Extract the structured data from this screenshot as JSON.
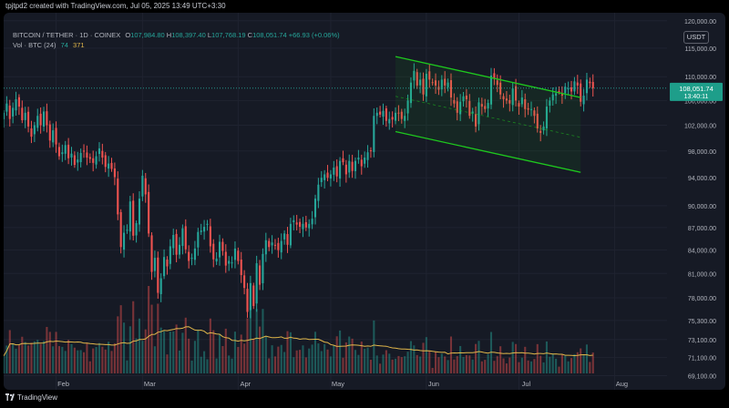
{
  "header": {
    "author_line": "tpjtpd2 created with TradingView.com, Jul 05, 2025 13:49 UTC+3:30"
  },
  "legend": {
    "symbol": "BITCOIN / TETHER · 1D · COINEX",
    "o_label": "O",
    "o_value": "107,984.80",
    "h_label": "H",
    "h_value": "108,397.40",
    "l_label": "L",
    "l_value": "107,768.19",
    "c_label": "C",
    "c_value": "108,051.74",
    "change": "+66.93 (+0.06%)",
    "vol_label": "Vol · BTC (24)",
    "vol_value1": "74",
    "vol_value2": "371"
  },
  "ticker_button": "USDT",
  "footer": {
    "brand": "TradingView"
  },
  "colors": {
    "background": "#161a25",
    "up": "#26a69a",
    "down": "#ef5350",
    "channel": "#1ec81e",
    "volume_ma": "#e0b64a",
    "price_tag": "#1e9e8a"
  },
  "chart_data": {
    "type": "candlestick",
    "symbol": "BITCOIN / TETHER",
    "interval": "1D",
    "exchange": "COINEX",
    "x_tick_labels": [
      "Feb",
      "Mar",
      "Apr",
      "May",
      "Jun",
      "Jul",
      "Aug"
    ],
    "x_ticks_dates": [
      "2025-02-01",
      "2025-03-01",
      "2025-04-01",
      "2025-05-01",
      "2025-06-01",
      "2025-07-01",
      "2025-08-01"
    ],
    "x_range": [
      "2025-01-15",
      "2025-08-18"
    ],
    "y_scale": "log",
    "y_ticks": [
      120000,
      115000,
      110000,
      106000,
      102000,
      98000,
      94000,
      90000,
      87000,
      84000,
      81000,
      78000,
      75300,
      73100,
      71100,
      69100
    ],
    "y_tick_labels": [
      "120,000.00",
      "115,000.00",
      "110,000.00",
      "106,000.00",
      "102,000.00",
      "98,000.00",
      "94,000.00",
      "90,000.00",
      "87,000.00",
      "84,000.00",
      "81,000.00",
      "78,000.00",
      "75,300.00",
      "73,100.00",
      "71,100.00",
      "69,100.00"
    ],
    "y_range": [
      67600,
      121500
    ],
    "last_price": 108051.74,
    "last_price_label": "108,051.74",
    "countdown_label": "13:40:11",
    "closes": [
      104000,
      105500,
      103000,
      104800,
      106200,
      105000,
      102800,
      104000,
      101800,
      100200,
      102000,
      103500,
      102000,
      104200,
      102000,
      99600,
      101200,
      99000,
      97200,
      97800,
      98900,
      96900,
      97600,
      95900,
      96700,
      97700,
      98000,
      97000,
      96800,
      96200,
      97200,
      98400,
      97000,
      95600,
      96100,
      95300,
      94100,
      88800,
      84400,
      86300,
      86700,
      90600,
      85900,
      87600,
      91000,
      94300,
      91600,
      86200,
      81200,
      83000,
      78600,
      80400,
      83100,
      81900,
      84500,
      86000,
      83400,
      84700,
      86900,
      84100,
      82600,
      83000,
      84200,
      86400,
      86600,
      87100,
      87500,
      84500,
      82800,
      82900,
      85100,
      83900,
      82000,
      82600,
      82400,
      84200,
      82600,
      80800,
      79200,
      76300,
      79800,
      77000,
      82300,
      79600,
      83500,
      85300,
      84400,
      85000,
      84600,
      84000,
      85200,
      86200,
      84700,
      87500,
      88000,
      87400,
      87100,
      87500,
      87000,
      87500,
      88200,
      91000,
      93000,
      94000,
      94500,
      94000,
      94500,
      95500,
      94200,
      96500,
      96300,
      94500,
      96500,
      95000,
      96500,
      97000,
      95700,
      97000,
      97800,
      98000,
      103500,
      104000,
      103700,
      104300,
      102700,
      103000,
      102900,
      104000,
      104000,
      103000,
      103500,
      106000,
      109000,
      111000,
      108500,
      109500,
      107000,
      110500,
      109500,
      109000,
      108500,
      107800,
      109500,
      108500,
      109000,
      106500,
      105500,
      104000,
      105800,
      106700,
      106200,
      103500,
      104200,
      101800,
      105700,
      105000,
      104600,
      105600,
      110200,
      109800,
      108600,
      107000,
      106200,
      106000,
      105500,
      108000,
      106000,
      105000,
      106500,
      104600,
      104500,
      104600,
      103500,
      101500,
      100800,
      101800,
      105000,
      106000,
      107000,
      107200,
      107500,
      106800,
      108300,
      108000,
      107500,
      109200,
      108500,
      105800,
      106800,
      109500,
      108900,
      108051.74
    ],
    "channel": {
      "upper": [
        [
          "2025-05-22",
          113500
        ],
        [
          "2025-07-21",
          106500
        ]
      ],
      "middle": [
        [
          "2025-05-22",
          106700
        ],
        [
          "2025-07-21",
          100100
        ]
      ],
      "lower": [
        [
          "2025-05-22",
          101000
        ],
        [
          "2025-07-21",
          94800
        ]
      ]
    }
  }
}
